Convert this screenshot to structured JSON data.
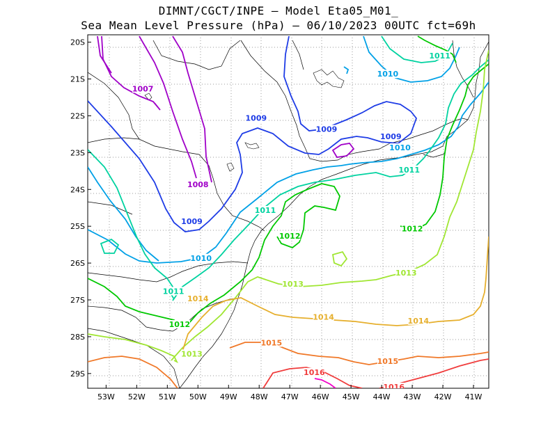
{
  "title": {
    "line1": "DIMNT/CGCT/INPE –  Model Eta05_M01_",
    "line2": "Sea Mean Level Pressure (hPa) – 06/10/2023 00UTC fct=69h"
  },
  "axes": {
    "lat_labels": [
      "20S",
      "21S",
      "22S",
      "23S",
      "24S",
      "25S",
      "26S",
      "27S",
      "28S",
      "29S"
    ],
    "lon_labels": [
      "53W",
      "52W",
      "51W",
      "50W",
      "49W",
      "48W",
      "47W",
      "46W",
      "45W",
      "44W",
      "43W",
      "42W",
      "41W"
    ]
  },
  "chart_data": {
    "type": "contour",
    "variable": "Sea Mean Level Pressure (hPa)",
    "lon_range": [
      -53.6,
      -40.5
    ],
    "lat_range": [
      -29.4,
      -19.8
    ],
    "grid": true,
    "levels": [
      1007,
      1008,
      1009,
      1010,
      1011,
      1012,
      1013,
      1014,
      1015,
      1016
    ],
    "contour_labels": [
      {
        "text": "1007",
        "lon": -51.8,
        "lat": -21.3
      },
      {
        "text": "1008",
        "lon": -50.0,
        "lat": -23.9
      },
      {
        "text": "1009",
        "lon": -50.2,
        "lat": -24.9
      },
      {
        "text": "1009",
        "lon": -48.1,
        "lat": -22.1
      },
      {
        "text": "1009",
        "lon": -45.8,
        "lat": -22.4
      },
      {
        "text": "1009",
        "lon": -43.7,
        "lat": -22.6
      },
      {
        "text": "1010",
        "lon": -49.9,
        "lat": -25.9
      },
      {
        "text": "1010",
        "lon": -43.8,
        "lat": -20.9
      },
      {
        "text": "1010",
        "lon": -43.4,
        "lat": -22.9
      },
      {
        "text": "1011",
        "lon": -42.1,
        "lat": -20.4
      },
      {
        "text": "1011",
        "lon": -43.1,
        "lat": -23.5
      },
      {
        "text": "1011",
        "lon": -47.8,
        "lat": -24.6
      },
      {
        "text": "1011",
        "lon": -50.8,
        "lat": -26.8
      },
      {
        "text": "1012",
        "lon": -47.0,
        "lat": -25.3
      },
      {
        "text": "1012",
        "lon": -43.0,
        "lat": -25.1
      },
      {
        "text": "1012",
        "lon": -50.6,
        "lat": -27.7
      },
      {
        "text": "1013",
        "lon": -46.9,
        "lat": -26.6
      },
      {
        "text": "1013",
        "lon": -43.2,
        "lat": -26.3
      },
      {
        "text": "1013",
        "lon": -50.2,
        "lat": -28.5
      },
      {
        "text": "1014",
        "lon": -50.0,
        "lat": -27.0
      },
      {
        "text": "1014",
        "lon": -45.9,
        "lat": -27.5
      },
      {
        "text": "1014",
        "lon": -42.8,
        "lat": -27.6
      },
      {
        "text": "1015",
        "lon": -47.6,
        "lat": -28.2
      },
      {
        "text": "1015",
        "lon": -43.8,
        "lat": -28.7
      },
      {
        "text": "1016",
        "lon": -46.2,
        "lat": -29.0
      },
      {
        "text": "1016",
        "lon": -43.6,
        "lat": -29.4
      }
    ],
    "level_colors": {
      "1007": "#a000c8",
      "1008": "#a000c8",
      "1009": "#1e3ce6",
      "1010": "#00a0e6",
      "1011": "#00d2a0",
      "1012": "#00c800",
      "1013": "#a0e632",
      "1014": "#e6af2d",
      "1015": "#f07828",
      "1016": "#f03c3c",
      "1017": "#f000c8"
    }
  }
}
